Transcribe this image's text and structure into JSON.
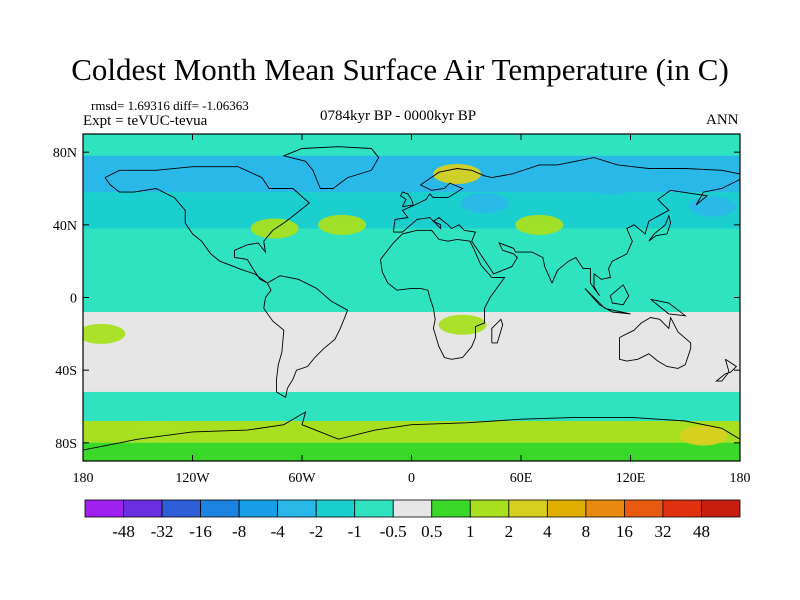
{
  "chart_data": {
    "type": "heatmap",
    "title": "Coldest Month Mean Surface Air Temperature (in C)",
    "stats": "rmsd= 1.69316 diff= -1.06363",
    "experiment": "Expt = teVUC-tevua",
    "period": "0784kyr BP - 0000kyr BP",
    "season": "ANN",
    "map": {
      "projection": "equirectangular",
      "lon_range": [
        -180,
        180
      ],
      "lat_range": [
        -90,
        90
      ],
      "x_ticks": [
        {
          "value": -180,
          "label": "180"
        },
        {
          "value": -120,
          "label": "120W"
        },
        {
          "value": -60,
          "label": "60W"
        },
        {
          "value": 0,
          "label": "0"
        },
        {
          "value": 60,
          "label": "60E"
        },
        {
          "value": 120,
          "label": "120E"
        },
        {
          "value": 180,
          "label": "180"
        }
      ],
      "y_ticks": [
        {
          "value": 80,
          "label": "80N"
        },
        {
          "value": 40,
          "label": "40N"
        },
        {
          "value": 0,
          "label": "0"
        },
        {
          "value": -40,
          "label": "40S"
        },
        {
          "value": -80,
          "label": "80S"
        }
      ],
      "background_level": "-1 to -0.5",
      "bands": [
        {
          "lat": [
            78,
            90
          ],
          "level": "-1 to -0.5"
        },
        {
          "lat": [
            58,
            78
          ],
          "level": "-4 to -2"
        },
        {
          "lat": [
            38,
            58
          ],
          "level": "-2 to -1"
        },
        {
          "lat": [
            8,
            38
          ],
          "level": "-1 to -0.5"
        },
        {
          "lat": [
            -8,
            8
          ],
          "level": "-1 to -0.5"
        },
        {
          "lat": [
            -38,
            -8
          ],
          "level": "-0.5 to 0.5"
        },
        {
          "lat": [
            -52,
            -38
          ],
          "level": "-0.5 to 0.5"
        },
        {
          "lat": [
            -68,
            -52
          ],
          "level": "-1 to -0.5"
        },
        {
          "lat": [
            -80,
            -68
          ],
          "level": "1 to 2"
        },
        {
          "lat": [
            -90,
            -80
          ],
          "level": "0.5 to 1"
        }
      ],
      "regions": [
        {
          "name": "Scandinavia",
          "lon": 25,
          "lat": 68,
          "level": "2 to 4"
        },
        {
          "name": "North Atlantic",
          "lon": -38,
          "lat": 40,
          "level": "1 to 2"
        },
        {
          "name": "Eastern United States",
          "lon": -75,
          "lat": 38,
          "level": "1 to 2"
        },
        {
          "name": "Eastern Europe",
          "lon": 40,
          "lat": 52,
          "level": "-4 to -2"
        },
        {
          "name": "Siberia",
          "lon": 110,
          "lat": 62,
          "level": "-4 to -2"
        },
        {
          "name": "Central Asia",
          "lon": 70,
          "lat": 40,
          "level": "1 to 2"
        },
        {
          "name": "North Pacific",
          "lon": 165,
          "lat": 50,
          "level": "-4 to -2"
        },
        {
          "name": "Southern Africa",
          "lon": 28,
          "lat": -15,
          "level": "1 to 2"
        },
        {
          "name": "South Pacific",
          "lon": -170,
          "lat": -20,
          "level": "1 to 2"
        },
        {
          "name": "Indian Ocean",
          "lon": 80,
          "lat": -25,
          "level": "-0.5 to 0.5"
        },
        {
          "name": "Southern Ocean east",
          "lon": 160,
          "lat": -76,
          "level": "2 to 4"
        },
        {
          "name": "Southern Ocean west",
          "lon": -140,
          "lat": -74,
          "level": "1 to 2"
        }
      ]
    },
    "colorbar": {
      "labels": [
        "-48",
        "-32",
        "-16",
        "-8",
        "-4",
        "-2",
        "-1",
        "-0.5",
        "0.5",
        "1",
        "2",
        "4",
        "8",
        "16",
        "32",
        "48"
      ],
      "colors": [
        "#a020f0",
        "#6a2fe0",
        "#2f5fd8",
        "#1c84e0",
        "#17a0e8",
        "#2ab8e8",
        "#1ccfcf",
        "#2fe2c0",
        "#e6e6e6",
        "#39d829",
        "#a8e020",
        "#d8d020",
        "#e0b000",
        "#e88a10",
        "#e85a10",
        "#e03010",
        "#c81e10"
      ]
    }
  }
}
